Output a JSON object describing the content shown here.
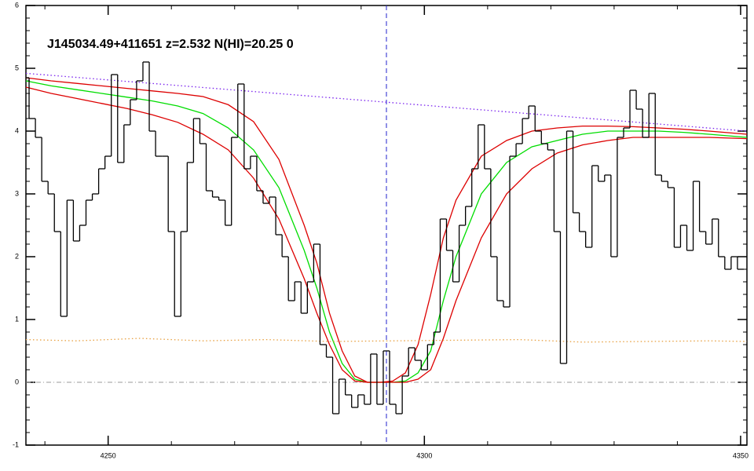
{
  "chart_data": {
    "type": "step",
    "title": "J145034.49+411651 z=2.532 N(HI)=20.25 0",
    "xlim": [
      4237,
      4351
    ],
    "ylim": [
      -1,
      6
    ],
    "xticks": [
      4250,
      4300,
      4350
    ],
    "yticks": [
      -1,
      0,
      1,
      2,
      3,
      4,
      5,
      6
    ],
    "vline": 4294,
    "hline": 0,
    "flux": {
      "color": "#000000",
      "x": [
        4237,
        4238,
        4239,
        4240,
        4241,
        4242,
        4243,
        4244,
        4245,
        4246,
        4247,
        4248,
        4249,
        4250,
        4251,
        4252,
        4253,
        4254,
        4255,
        4256,
        4257,
        4258,
        4259,
        4260,
        4261,
        4262,
        4263,
        4264,
        4265,
        4266,
        4267,
        4268,
        4269,
        4270,
        4271,
        4272,
        4273,
        4274,
        4275,
        4276,
        4277,
        4278,
        4279,
        4280,
        4281,
        4282,
        4283,
        4284,
        4285,
        4286,
        4287,
        4288,
        4289,
        4290,
        4291,
        4292,
        4293,
        4294,
        4295,
        4296,
        4297,
        4298,
        4299,
        4300,
        4301,
        4302,
        4303,
        4304,
        4305,
        4306,
        4307,
        4308,
        4309,
        4310,
        4311,
        4312,
        4313,
        4314,
        4315,
        4316,
        4317,
        4318,
        4319,
        4320,
        4321,
        4322,
        4323,
        4324,
        4325,
        4326,
        4327,
        4328,
        4329,
        4330,
        4331,
        4332,
        4333,
        4334,
        4335,
        4336,
        4337,
        4338,
        4339,
        4340,
        4341,
        4342,
        4343,
        4344,
        4345,
        4346,
        4347,
        4348,
        4349,
        4350
      ],
      "values": [
        4.85,
        4.2,
        3.9,
        3.2,
        3.0,
        2.4,
        1.05,
        2.9,
        2.25,
        2.5,
        2.9,
        3.0,
        3.4,
        3.6,
        4.9,
        3.5,
        4.1,
        4.5,
        4.8,
        5.1,
        4.0,
        3.6,
        3.6,
        2.4,
        1.05,
        2.4,
        3.5,
        4.2,
        3.8,
        3.05,
        2.95,
        2.9,
        2.5,
        3.9,
        4.75,
        3.4,
        3.6,
        3.05,
        2.85,
        2.95,
        2.35,
        2.0,
        1.3,
        1.6,
        1.1,
        1.6,
        2.2,
        0.6,
        0.4,
        -0.5,
        0.05,
        -0.2,
        -0.4,
        -0.2,
        -0.35,
        0.45,
        -0.35,
        0.5,
        -0.35,
        -0.5,
        0.1,
        0.55,
        0.35,
        0.2,
        0.6,
        0.8,
        2.6,
        2.1,
        1.6,
        2.5,
        2.8,
        3.4,
        4.1,
        3.4,
        2.0,
        1.3,
        1.2,
        3.6,
        3.8,
        4.2,
        4.4,
        4.0,
        3.8,
        3.7,
        2.4,
        0.3,
        4.0,
        2.7,
        2.4,
        2.15,
        3.45,
        3.2,
        3.3,
        2.0,
        3.9,
        4.05,
        4.65,
        4.35,
        3.9,
        4.6,
        3.3,
        3.2,
        3.1,
        2.15,
        2.5,
        2.1,
        3.2,
        2.4,
        2.2,
        2.6,
        2.0,
        1.8,
        2.0,
        1.8
      ]
    },
    "series": [
      {
        "color": "#00dd00",
        "style": "solid",
        "x": [
          4237,
          4241,
          4245,
          4249,
          4253,
          4257,
          4261,
          4265,
          4269,
          4273,
          4277,
          4281,
          4283,
          4285,
          4287,
          4289,
          4291,
          4293,
          4295,
          4297,
          4299,
          4301,
          4303,
          4305,
          4309,
          4313,
          4317,
          4321,
          4325,
          4329,
          4333,
          4337,
          4341,
          4345,
          4351
        ],
        "values": [
          4.8,
          4.72,
          4.66,
          4.6,
          4.54,
          4.48,
          4.4,
          4.28,
          4.05,
          3.7,
          3.1,
          2.1,
          1.5,
          0.8,
          0.3,
          0.05,
          0,
          0,
          0,
          0.02,
          0.15,
          0.5,
          1.3,
          2.0,
          3.0,
          3.5,
          3.75,
          3.85,
          3.95,
          4.0,
          4.0,
          4.0,
          3.98,
          3.95,
          3.9
        ]
      },
      {
        "color": "#dd0000",
        "style": "solid",
        "x": [
          4237,
          4241,
          4245,
          4249,
          4253,
          4257,
          4261,
          4265,
          4269,
          4273,
          4277,
          4281,
          4283,
          4285,
          4287,
          4289,
          4291,
          4293,
          4295,
          4297,
          4299,
          4301,
          4303,
          4305,
          4309,
          4313,
          4317,
          4321,
          4325,
          4329,
          4333,
          4337,
          4341,
          4345,
          4351
        ],
        "values": [
          4.85,
          4.8,
          4.76,
          4.72,
          4.68,
          4.64,
          4.6,
          4.55,
          4.42,
          4.15,
          3.55,
          2.5,
          1.9,
          1.1,
          0.5,
          0.1,
          0,
          0,
          0.02,
          0.15,
          0.6,
          1.4,
          2.3,
          2.9,
          3.6,
          3.85,
          4.0,
          4.05,
          4.08,
          4.08,
          4.07,
          4.05,
          4.03,
          4.0,
          3.95
        ]
      },
      {
        "color": "#dd0000",
        "style": "solid",
        "x": [
          4237,
          4241,
          4245,
          4249,
          4253,
          4257,
          4261,
          4265,
          4269,
          4273,
          4277,
          4281,
          4283,
          4285,
          4287,
          4289,
          4291,
          4293,
          4295,
          4297,
          4299,
          4301,
          4303,
          4305,
          4309,
          4313,
          4317,
          4321,
          4325,
          4329,
          4333,
          4337,
          4341,
          4345,
          4351
        ],
        "values": [
          4.7,
          4.6,
          4.52,
          4.44,
          4.36,
          4.26,
          4.14,
          3.95,
          3.7,
          3.25,
          2.6,
          1.65,
          1.1,
          0.6,
          0.2,
          0.02,
          0,
          0,
          0,
          0,
          0.05,
          0.2,
          0.7,
          1.3,
          2.3,
          3.0,
          3.4,
          3.65,
          3.78,
          3.85,
          3.9,
          3.9,
          3.9,
          3.9,
          3.88
        ]
      },
      {
        "color": "#7a22ee",
        "style": "dotted",
        "x": [
          4237,
          4351
        ],
        "values": [
          4.92,
          4.0
        ]
      },
      {
        "color": "#e8a040",
        "style": "dotted",
        "x": [
          4237,
          4245,
          4255,
          4265,
          4275,
          4285,
          4295,
          4305,
          4315,
          4325,
          4335,
          4345,
          4351
        ],
        "values": [
          0.68,
          0.66,
          0.7,
          0.66,
          0.68,
          0.65,
          0.66,
          0.67,
          0.68,
          0.64,
          0.65,
          0.66,
          0.65
        ]
      }
    ]
  }
}
